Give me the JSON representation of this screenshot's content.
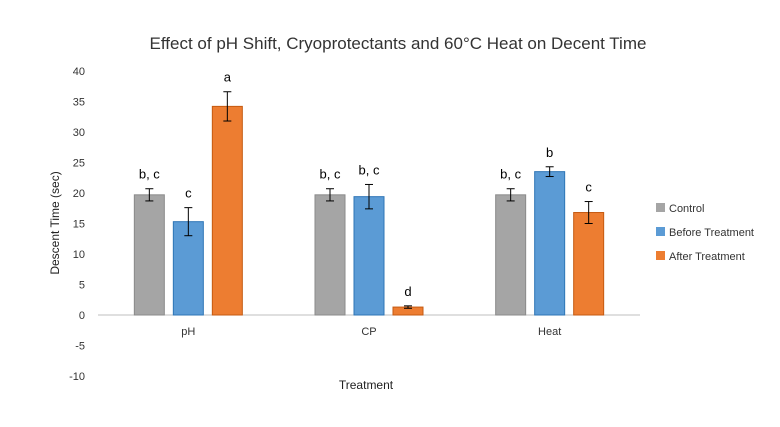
{
  "chart_data": {
    "type": "bar",
    "title": "Effect of pH Shift, Cryoprotectants and 60°C Heat on Decent Time",
    "xlabel": "Treatment",
    "ylabel": "Descent Time (sec)",
    "ylim": [
      -10,
      40
    ],
    "yticks": [
      -10,
      -5,
      0,
      5,
      10,
      15,
      20,
      25,
      30,
      35,
      40
    ],
    "categories": [
      "pH",
      "CP",
      "Heat"
    ],
    "legend_position": "right",
    "grid": false,
    "series": [
      {
        "name": "Control",
        "color": "#a5a5a5",
        "stroke": "#8a8a8a",
        "values": [
          19.7,
          19.7,
          19.7
        ],
        "errors": [
          1.0,
          1.0,
          1.0
        ],
        "labels": [
          "b, c",
          "b, c",
          "b, c"
        ]
      },
      {
        "name": "Before Treatment",
        "color": "#5b9bd5",
        "stroke": "#2e75b6",
        "values": [
          15.3,
          19.4,
          23.5
        ],
        "errors": [
          2.3,
          2.0,
          0.8
        ],
        "labels": [
          "c",
          "b, c",
          "b"
        ]
      },
      {
        "name": "After Treatment",
        "color": "#ed7d31",
        "stroke": "#c55a11",
        "values": [
          34.2,
          1.3,
          16.8
        ],
        "errors": [
          2.4,
          0.2,
          1.8
        ],
        "labels": [
          "a",
          "d",
          "c"
        ]
      }
    ]
  }
}
